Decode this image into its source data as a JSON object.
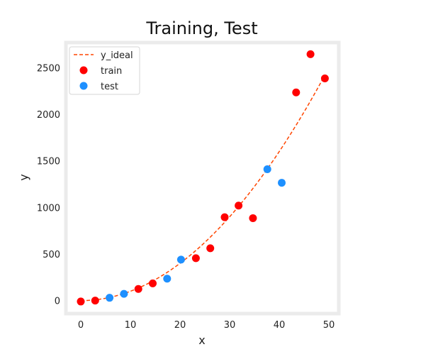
{
  "chart_data": {
    "type": "scatter",
    "title": "Training, Test",
    "xlabel": "x",
    "ylabel": "y",
    "xlim": [
      -3,
      52
    ],
    "ylim": [
      -140,
      2770
    ],
    "xticks": [
      0,
      10,
      20,
      30,
      40,
      50
    ],
    "yticks": [
      0,
      500,
      1000,
      1500,
      2000,
      2500
    ],
    "grid": false,
    "legend_position": "top-left",
    "ideal_curve": {
      "name": "y_ideal",
      "color": "#ff4500",
      "style": "dashed",
      "x_range": [
        0,
        49
      ],
      "coefficient": 1,
      "exponent": 2
    },
    "series": [
      {
        "name": "train",
        "color": "#ff0000",
        "points": [
          [
            0,
            -10
          ],
          [
            2.9,
            0
          ],
          [
            11.6,
            125
          ],
          [
            14.5,
            185
          ],
          [
            23.2,
            455
          ],
          [
            26.1,
            562
          ],
          [
            29.0,
            895
          ],
          [
            31.8,
            1020
          ],
          [
            34.7,
            885
          ],
          [
            43.4,
            2235
          ],
          [
            46.3,
            2645
          ],
          [
            49.2,
            2385
          ]
        ]
      },
      {
        "name": "test",
        "color": "#1e90ff",
        "points": [
          [
            5.8,
            30
          ],
          [
            8.7,
            72
          ],
          [
            17.4,
            235
          ],
          [
            20.2,
            440
          ],
          [
            37.6,
            1410
          ],
          [
            40.5,
            1265
          ]
        ]
      }
    ]
  }
}
